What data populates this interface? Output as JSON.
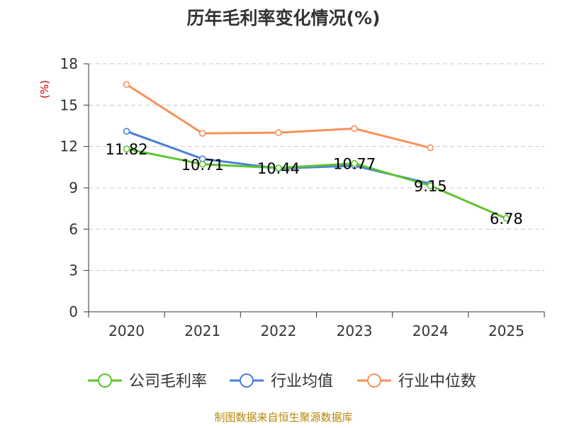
{
  "chart_data": {
    "type": "line",
    "title": "历年毛利率变化情况(%)",
    "ylabel": "(%)",
    "xlabel": "",
    "categories": [
      "2020",
      "2021",
      "2022",
      "2023",
      "2024",
      "2025"
    ],
    "ylim": [
      0,
      18
    ],
    "yticks": [
      0,
      3,
      6,
      9,
      12,
      15,
      18
    ],
    "grid": true,
    "legend_position": "bottom",
    "series": [
      {
        "name": "公司毛利率",
        "color": "#5cc52d",
        "values": [
          11.82,
          10.71,
          10.44,
          10.77,
          9.15,
          6.78
        ],
        "data_labels": [
          "11.82",
          "10.71",
          "10.44",
          "10.77",
          "9.15",
          "6.78"
        ]
      },
      {
        "name": "行业均值",
        "color": "#4a7fd9",
        "values": [
          13.1,
          11.1,
          10.4,
          10.6,
          9.3,
          null
        ]
      },
      {
        "name": "行业中位数",
        "color": "#f7915a",
        "values": [
          16.5,
          12.95,
          13.0,
          13.3,
          11.9,
          null
        ]
      }
    ]
  },
  "footer": {
    "source": "制图数据来自恒生聚源数据库",
    "source_color": "#b8860b"
  },
  "ylabel_color": "#cc0000"
}
